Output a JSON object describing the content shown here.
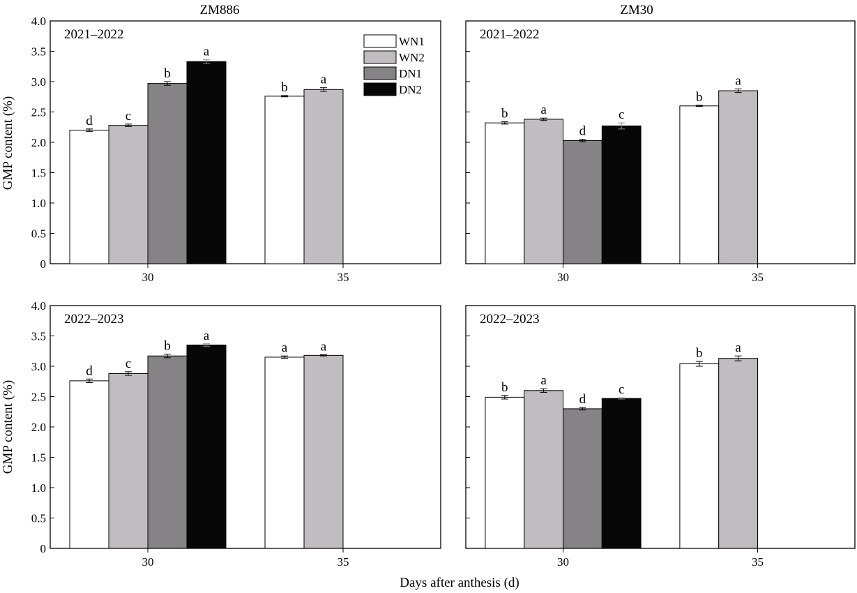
{
  "figure": {
    "ylabel": "GMP content (%)",
    "xlabel": "Days after anthesis (d)",
    "column_titles": [
      "ZM886",
      "ZM30"
    ],
    "legend": [
      {
        "name": "WN1",
        "color": "#ffffff"
      },
      {
        "name": "WN2",
        "color": "#c0bcc0"
      },
      {
        "name": "DN1",
        "color": "#858385"
      },
      {
        "name": "DN2",
        "color": "#070707"
      }
    ]
  },
  "chart_data": [
    {
      "type": "bar",
      "cultivar": "ZM886",
      "period": "2021–2022",
      "categories": [
        "30",
        "35"
      ],
      "ylim": [
        0,
        4.0
      ],
      "yticks": [
        "0",
        "0.5",
        "1.0",
        "1.5",
        "2.0",
        "2.5",
        "3.0",
        "3.5",
        "4.0"
      ],
      "series": [
        {
          "name": "WN1",
          "values": [
            2.2,
            2.76
          ],
          "errors": [
            0.02,
            0.01
          ],
          "labels": [
            "d",
            "b"
          ]
        },
        {
          "name": "WN2",
          "values": [
            2.28,
            2.87
          ],
          "errors": [
            0.02,
            0.03
          ],
          "labels": [
            "c",
            "a"
          ]
        },
        {
          "name": "DN1",
          "values": [
            2.97,
            null
          ],
          "errors": [
            0.03,
            null
          ],
          "labels": [
            "b",
            null
          ]
        },
        {
          "name": "DN2",
          "values": [
            3.33,
            null
          ],
          "errors": [
            0.03,
            null
          ],
          "labels": [
            "a",
            null
          ]
        }
      ]
    },
    {
      "type": "bar",
      "cultivar": "ZM30",
      "period": "2021–2022",
      "categories": [
        "30",
        "35"
      ],
      "ylim": [
        0,
        4.0
      ],
      "yticks": [
        "0",
        "0.5",
        "1.0",
        "1.5",
        "2.0",
        "2.5",
        "3.0",
        "3.5",
        "4.0"
      ],
      "series": [
        {
          "name": "WN1",
          "values": [
            2.32,
            2.6
          ],
          "errors": [
            0.02,
            0.01
          ],
          "labels": [
            "b",
            "b"
          ]
        },
        {
          "name": "WN2",
          "values": [
            2.38,
            2.85
          ],
          "errors": [
            0.02,
            0.03
          ],
          "labels": [
            "a",
            "a"
          ]
        },
        {
          "name": "DN1",
          "values": [
            2.03,
            null
          ],
          "errors": [
            0.02,
            null
          ],
          "labels": [
            "d",
            null
          ]
        },
        {
          "name": "DN2",
          "values": [
            2.27,
            null
          ],
          "errors": [
            0.05,
            null
          ],
          "labels": [
            "c",
            null
          ]
        }
      ]
    },
    {
      "type": "bar",
      "cultivar": "ZM886",
      "period": "2022–2023",
      "categories": [
        "30",
        "35"
      ],
      "ylim": [
        0,
        4.0
      ],
      "yticks": [
        "0",
        "0.5",
        "1.0",
        "1.5",
        "2.0",
        "2.5",
        "3.0",
        "3.5",
        "4.0"
      ],
      "series": [
        {
          "name": "WN1",
          "values": [
            2.76,
            3.15
          ],
          "errors": [
            0.03,
            0.02
          ],
          "labels": [
            "d",
            "a"
          ]
        },
        {
          "name": "WN2",
          "values": [
            2.88,
            3.18
          ],
          "errors": [
            0.03,
            0.01
          ],
          "labels": [
            "c",
            "a"
          ]
        },
        {
          "name": "DN1",
          "values": [
            3.17,
            null
          ],
          "errors": [
            0.03,
            null
          ],
          "labels": [
            "b",
            null
          ]
        },
        {
          "name": "DN2",
          "values": [
            3.35,
            null
          ],
          "errors": [
            0.02,
            null
          ],
          "labels": [
            "a",
            null
          ]
        }
      ]
    },
    {
      "type": "bar",
      "cultivar": "ZM30",
      "period": "2022–2023",
      "categories": [
        "30",
        "35"
      ],
      "ylim": [
        0,
        4.0
      ],
      "yticks": [
        "0",
        "0.5",
        "1.0",
        "1.5",
        "2.0",
        "2.5",
        "3.0",
        "3.5",
        "4.0"
      ],
      "series": [
        {
          "name": "WN1",
          "values": [
            2.49,
            3.04
          ],
          "errors": [
            0.03,
            0.04
          ],
          "labels": [
            "b",
            "b"
          ]
        },
        {
          "name": "WN2",
          "values": [
            2.6,
            3.13
          ],
          "errors": [
            0.03,
            0.04
          ],
          "labels": [
            "a",
            "a"
          ]
        },
        {
          "name": "DN1",
          "values": [
            2.3,
            null
          ],
          "errors": [
            0.02,
            null
          ],
          "labels": [
            "d",
            null
          ]
        },
        {
          "name": "DN2",
          "values": [
            2.47,
            null
          ],
          "errors": [
            0.01,
            null
          ],
          "labels": [
            "c",
            null
          ]
        }
      ]
    }
  ]
}
